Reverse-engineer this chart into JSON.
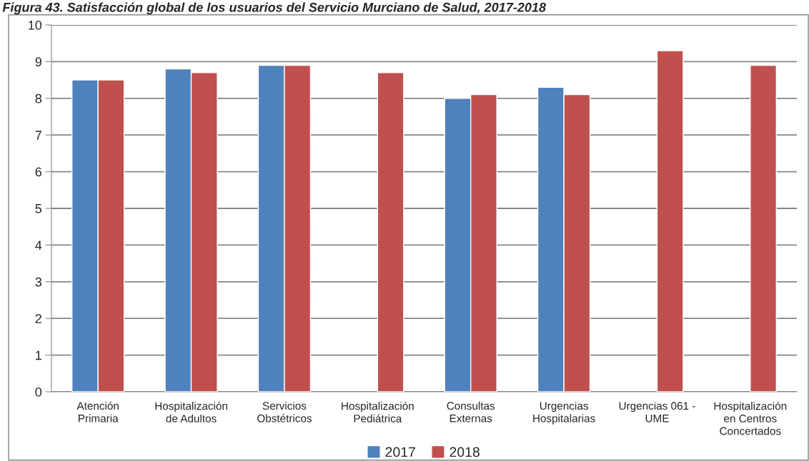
{
  "chart_data": {
    "type": "bar",
    "title": "Figura 43. Satisfacción global de los usuarios del Servicio Murciano de Salud, 2017-2018",
    "categories": [
      "Atención\nPrimaria",
      "Hospitalización\nde Adultos",
      "Servicios\nObstétricos",
      "Hospitalización\nPediátrica",
      "Consultas\nExternas",
      "Urgencias\nHospitalarias",
      "Urgencias 061 -\nUME",
      "Hospitalización\nen Centros\nConcertados"
    ],
    "series": [
      {
        "name": "2017",
        "color": "#4f81bd",
        "values": [
          8.5,
          8.8,
          8.9,
          null,
          8.0,
          8.3,
          null,
          null
        ]
      },
      {
        "name": "2018",
        "color": "#c0504d",
        "values": [
          8.5,
          8.7,
          8.9,
          8.7,
          8.1,
          8.1,
          9.3,
          8.9
        ]
      }
    ],
    "ylim": [
      0,
      10
    ],
    "yticks": [
      0,
      1,
      2,
      3,
      4,
      5,
      6,
      7,
      8,
      9,
      10
    ],
    "grid": "y",
    "legend": "bottom"
  }
}
